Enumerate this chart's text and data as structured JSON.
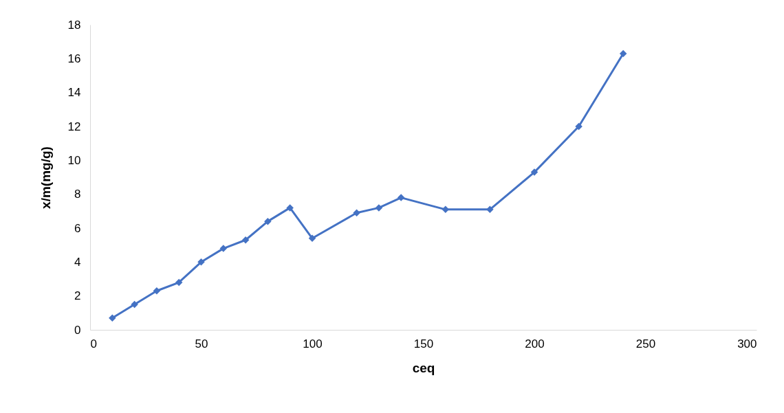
{
  "chart_data": {
    "type": "line",
    "xlabel": "ceq",
    "ylabel": "x/m(mg/g)",
    "x": [
      10,
      20,
      30,
      40,
      50,
      60,
      70,
      80,
      90,
      100,
      120,
      130,
      140,
      160,
      180,
      200,
      220,
      240
    ],
    "series": [
      {
        "color": "#4472c4",
        "values": [
          0.7,
          1.5,
          2.3,
          2.8,
          4.0,
          4.8,
          5.3,
          6.4,
          7.2,
          5.4,
          6.9,
          7.2,
          7.8,
          7.1,
          7.1,
          9.3,
          12.0,
          16.3
        ]
      }
    ],
    "xlim": [
      0,
      300
    ],
    "xticks": [
      0,
      50,
      100,
      150,
      200,
      250,
      300
    ],
    "ylim": [
      0,
      18
    ],
    "yticks": [
      0,
      2,
      4,
      6,
      8,
      10,
      12,
      14,
      16,
      18
    ],
    "grid": false,
    "legend": false,
    "marker": "diamond",
    "line_style": "solid"
  }
}
